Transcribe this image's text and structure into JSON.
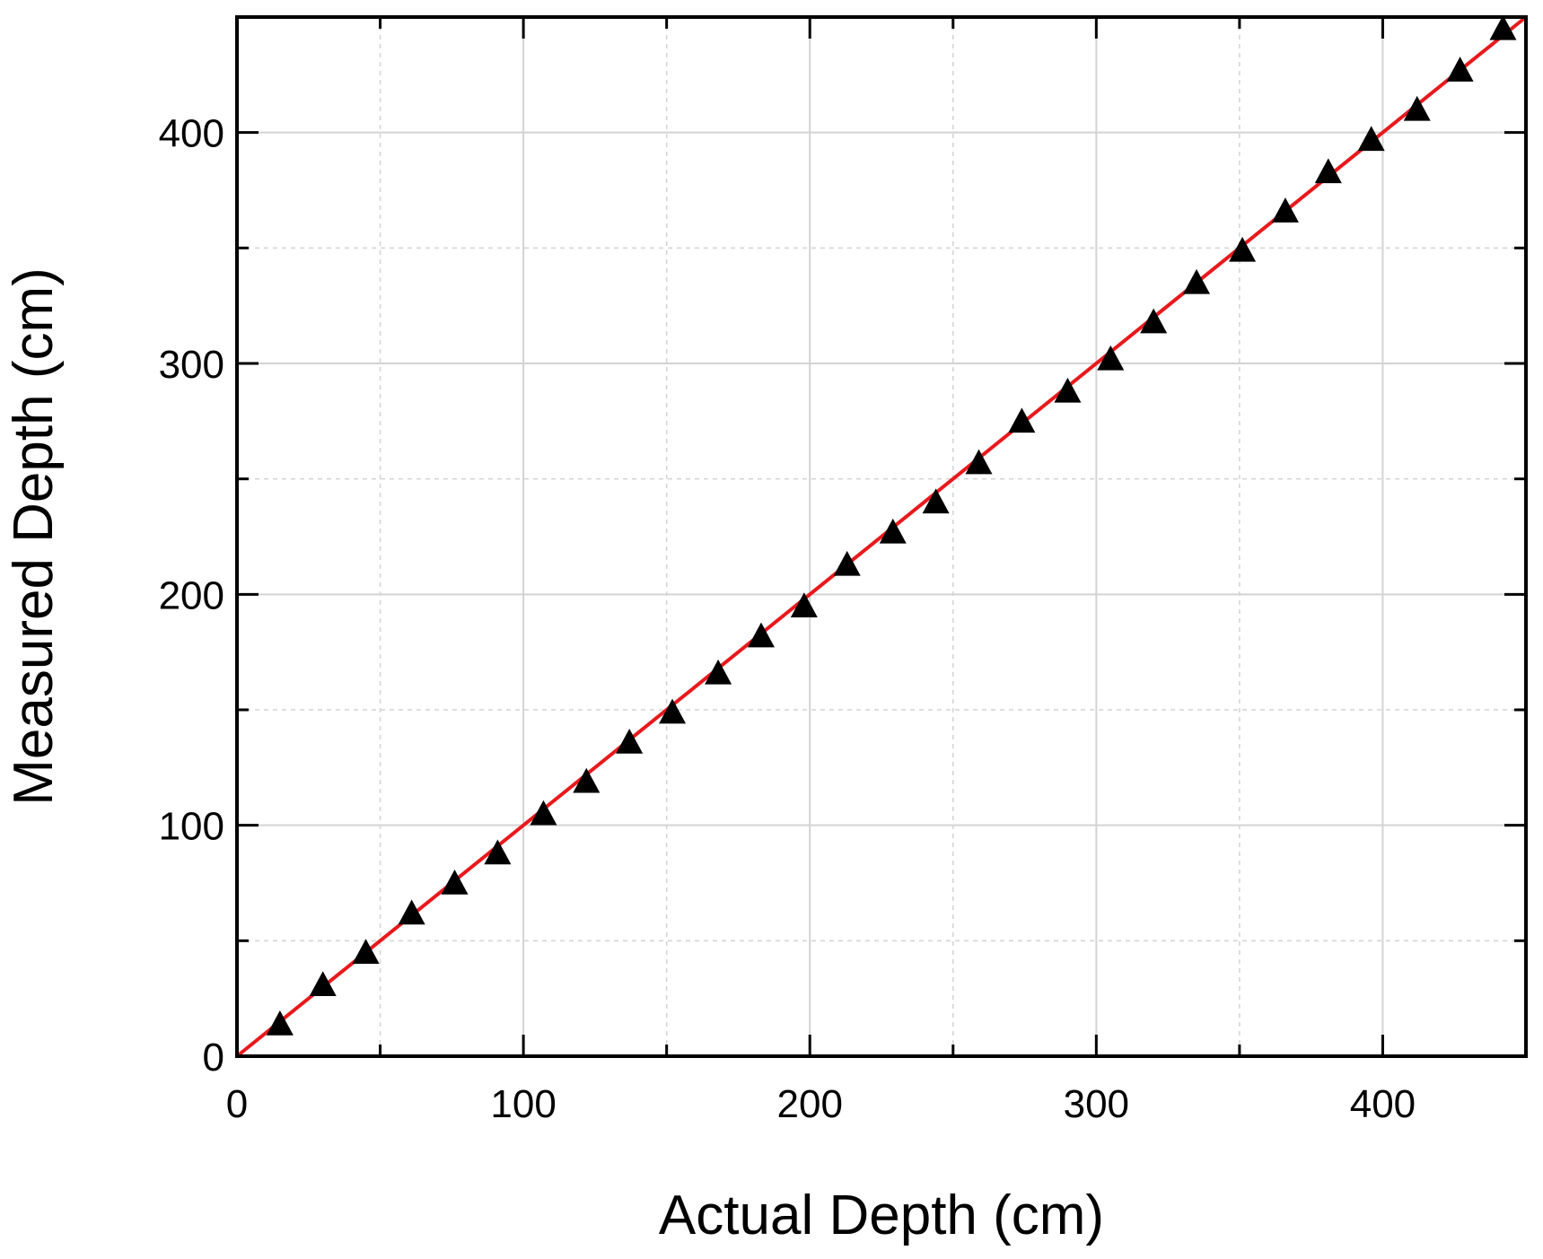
{
  "chart_data": {
    "type": "scatter",
    "title": "",
    "xlabel": "Actual Depth (cm)",
    "ylabel": "Measured Depth (cm)",
    "xlim": [
      0,
      450
    ],
    "ylim": [
      0,
      450
    ],
    "x_ticks": [
      "0",
      "100",
      "200",
      "300",
      "400"
    ],
    "y_ticks": [
      "0",
      "100",
      "200",
      "300",
      "400"
    ],
    "grid": true,
    "legend": "none",
    "marker_color": "#000000",
    "fit_color": "#e8191c",
    "series": [
      {
        "marker": "triangle",
        "points": [
          [
            15,
            14
          ],
          [
            30,
            31
          ],
          [
            45,
            45
          ],
          [
            61,
            62
          ],
          [
            76,
            75
          ],
          [
            91,
            88
          ],
          [
            107,
            105
          ],
          [
            122,
            119
          ],
          [
            137,
            136
          ],
          [
            152,
            149
          ],
          [
            168,
            166
          ],
          [
            183,
            182
          ],
          [
            198,
            195
          ],
          [
            213,
            213
          ],
          [
            229,
            227
          ],
          [
            244,
            240
          ],
          [
            259,
            257
          ],
          [
            274,
            275
          ],
          [
            290,
            288
          ],
          [
            305,
            302
          ],
          [
            320,
            318
          ],
          [
            335,
            335
          ],
          [
            351,
            349
          ],
          [
            366,
            366
          ],
          [
            381,
            383
          ],
          [
            396,
            397
          ],
          [
            412,
            410
          ],
          [
            427,
            427
          ],
          [
            442,
            445
          ]
        ]
      }
    ],
    "fit_line": {
      "from": [
        0,
        0
      ],
      "to": [
        450,
        450
      ]
    }
  }
}
